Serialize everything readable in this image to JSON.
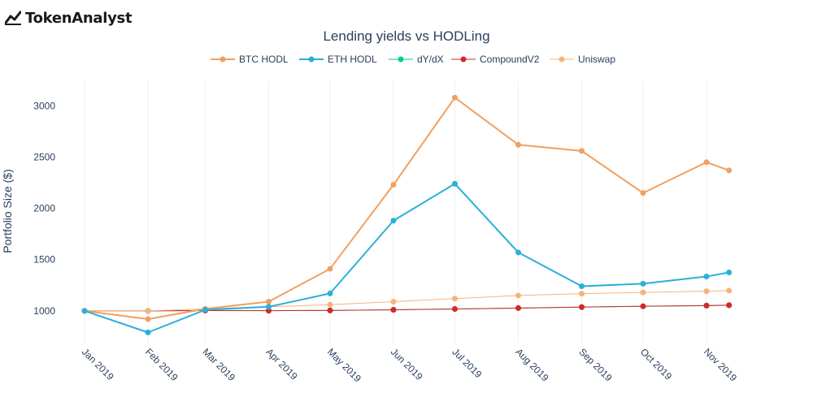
{
  "brand": {
    "name": "TokenAnalyst",
    "icon": "chart-line-logo-icon"
  },
  "chart_data": {
    "type": "line",
    "title": "Lending yields vs HODLing",
    "ylabel": "Portfolio Size ($)",
    "xlabel": "",
    "ylim": [
      690,
      3240
    ],
    "yticks": [
      1000,
      1500,
      2000,
      2500,
      3000
    ],
    "legend_position": "top",
    "grid": true,
    "x": [
      "2019-01-01",
      "2019-02-01",
      "2019-03-01",
      "2019-04-01",
      "2019-05-01",
      "2019-06-01",
      "2019-07-01",
      "2019-08-01",
      "2019-09-01",
      "2019-10-01",
      "2019-11-01",
      "2019-11-12"
    ],
    "xticks": [
      {
        "date": "2019-01-01",
        "label": "Jan 2019"
      },
      {
        "date": "2019-02-01",
        "label": "Feb 2019"
      },
      {
        "date": "2019-03-01",
        "label": "Mar 2019"
      },
      {
        "date": "2019-04-01",
        "label": "Apr 2019"
      },
      {
        "date": "2019-05-01",
        "label": "May 2019"
      },
      {
        "date": "2019-06-01",
        "label": "Jun 2019"
      },
      {
        "date": "2019-07-01",
        "label": "Jul 2019"
      },
      {
        "date": "2019-08-01",
        "label": "Aug 2019"
      },
      {
        "date": "2019-09-01",
        "label": "Sep 2019"
      },
      {
        "date": "2019-10-01",
        "label": "Oct 2019"
      },
      {
        "date": "2019-11-01",
        "label": "Nov 2019"
      }
    ],
    "series": [
      {
        "name": "BTC HODL",
        "color": "#f0a060",
        "width": 2,
        "values": [
          1000,
          920,
          1020,
          1090,
          1410,
          2230,
          3080,
          2620,
          2560,
          2150,
          2450,
          2370
        ]
      },
      {
        "name": "ETH HODL",
        "color": "#2ab0d8",
        "width": 2,
        "values": [
          1000,
          790,
          1010,
          1040,
          1170,
          1880,
          2240,
          1570,
          1240,
          1265,
          1335,
          1375
        ]
      },
      {
        "name": "dY/dX",
        "color": "#00cc96",
        "width": 1,
        "values": [
          1000,
          1000,
          1005,
          1003,
          1005,
          1010,
          1018,
          1027,
          1036,
          1044,
          1050,
          1054
        ]
      },
      {
        "name": "CompoundV2",
        "color": "#d62728",
        "width": 1,
        "values": [
          1000,
          1000,
          1003,
          1002,
          1004,
          1011,
          1019,
          1028,
          1037,
          1045,
          1052,
          1056
        ]
      },
      {
        "name": "Uniswap",
        "color": "#f6b379",
        "width": 1,
        "values": [
          1000,
          1000,
          1020,
          1040,
          1060,
          1090,
          1120,
          1150,
          1168,
          1180,
          1192,
          1198
        ]
      }
    ]
  }
}
